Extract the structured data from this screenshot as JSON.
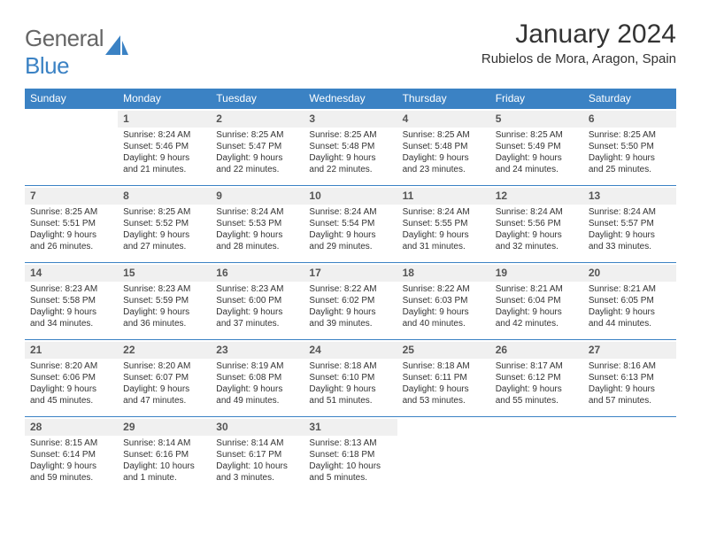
{
  "logo": {
    "part1": "General",
    "part2": "Blue"
  },
  "title": "January 2024",
  "location": "Rubielos de Mora, Aragon, Spain",
  "colors": {
    "accent": "#3b82c4",
    "text": "#333333",
    "muted": "#666666",
    "daybar": "#f0f0f0",
    "background": "#ffffff"
  },
  "days": [
    "Sunday",
    "Monday",
    "Tuesday",
    "Wednesday",
    "Thursday",
    "Friday",
    "Saturday"
  ],
  "weeks": [
    [
      null,
      {
        "n": "1",
        "sr": "8:24 AM",
        "ss": "5:46 PM",
        "dl": "9 hours and 21 minutes."
      },
      {
        "n": "2",
        "sr": "8:25 AM",
        "ss": "5:47 PM",
        "dl": "9 hours and 22 minutes."
      },
      {
        "n": "3",
        "sr": "8:25 AM",
        "ss": "5:48 PM",
        "dl": "9 hours and 22 minutes."
      },
      {
        "n": "4",
        "sr": "8:25 AM",
        "ss": "5:48 PM",
        "dl": "9 hours and 23 minutes."
      },
      {
        "n": "5",
        "sr": "8:25 AM",
        "ss": "5:49 PM",
        "dl": "9 hours and 24 minutes."
      },
      {
        "n": "6",
        "sr": "8:25 AM",
        "ss": "5:50 PM",
        "dl": "9 hours and 25 minutes."
      }
    ],
    [
      {
        "n": "7",
        "sr": "8:25 AM",
        "ss": "5:51 PM",
        "dl": "9 hours and 26 minutes."
      },
      {
        "n": "8",
        "sr": "8:25 AM",
        "ss": "5:52 PM",
        "dl": "9 hours and 27 minutes."
      },
      {
        "n": "9",
        "sr": "8:24 AM",
        "ss": "5:53 PM",
        "dl": "9 hours and 28 minutes."
      },
      {
        "n": "10",
        "sr": "8:24 AM",
        "ss": "5:54 PM",
        "dl": "9 hours and 29 minutes."
      },
      {
        "n": "11",
        "sr": "8:24 AM",
        "ss": "5:55 PM",
        "dl": "9 hours and 31 minutes."
      },
      {
        "n": "12",
        "sr": "8:24 AM",
        "ss": "5:56 PM",
        "dl": "9 hours and 32 minutes."
      },
      {
        "n": "13",
        "sr": "8:24 AM",
        "ss": "5:57 PM",
        "dl": "9 hours and 33 minutes."
      }
    ],
    [
      {
        "n": "14",
        "sr": "8:23 AM",
        "ss": "5:58 PM",
        "dl": "9 hours and 34 minutes."
      },
      {
        "n": "15",
        "sr": "8:23 AM",
        "ss": "5:59 PM",
        "dl": "9 hours and 36 minutes."
      },
      {
        "n": "16",
        "sr": "8:23 AM",
        "ss": "6:00 PM",
        "dl": "9 hours and 37 minutes."
      },
      {
        "n": "17",
        "sr": "8:22 AM",
        "ss": "6:02 PM",
        "dl": "9 hours and 39 minutes."
      },
      {
        "n": "18",
        "sr": "8:22 AM",
        "ss": "6:03 PM",
        "dl": "9 hours and 40 minutes."
      },
      {
        "n": "19",
        "sr": "8:21 AM",
        "ss": "6:04 PM",
        "dl": "9 hours and 42 minutes."
      },
      {
        "n": "20",
        "sr": "8:21 AM",
        "ss": "6:05 PM",
        "dl": "9 hours and 44 minutes."
      }
    ],
    [
      {
        "n": "21",
        "sr": "8:20 AM",
        "ss": "6:06 PM",
        "dl": "9 hours and 45 minutes."
      },
      {
        "n": "22",
        "sr": "8:20 AM",
        "ss": "6:07 PM",
        "dl": "9 hours and 47 minutes."
      },
      {
        "n": "23",
        "sr": "8:19 AM",
        "ss": "6:08 PM",
        "dl": "9 hours and 49 minutes."
      },
      {
        "n": "24",
        "sr": "8:18 AM",
        "ss": "6:10 PM",
        "dl": "9 hours and 51 minutes."
      },
      {
        "n": "25",
        "sr": "8:18 AM",
        "ss": "6:11 PM",
        "dl": "9 hours and 53 minutes."
      },
      {
        "n": "26",
        "sr": "8:17 AM",
        "ss": "6:12 PM",
        "dl": "9 hours and 55 minutes."
      },
      {
        "n": "27",
        "sr": "8:16 AM",
        "ss": "6:13 PM",
        "dl": "9 hours and 57 minutes."
      }
    ],
    [
      {
        "n": "28",
        "sr": "8:15 AM",
        "ss": "6:14 PM",
        "dl": "9 hours and 59 minutes."
      },
      {
        "n": "29",
        "sr": "8:14 AM",
        "ss": "6:16 PM",
        "dl": "10 hours and 1 minute."
      },
      {
        "n": "30",
        "sr": "8:14 AM",
        "ss": "6:17 PM",
        "dl": "10 hours and 3 minutes."
      },
      {
        "n": "31",
        "sr": "8:13 AM",
        "ss": "6:18 PM",
        "dl": "10 hours and 5 minutes."
      },
      null,
      null,
      null
    ]
  ],
  "labels": {
    "sunrise": "Sunrise:",
    "sunset": "Sunset:",
    "daylight": "Daylight:"
  }
}
